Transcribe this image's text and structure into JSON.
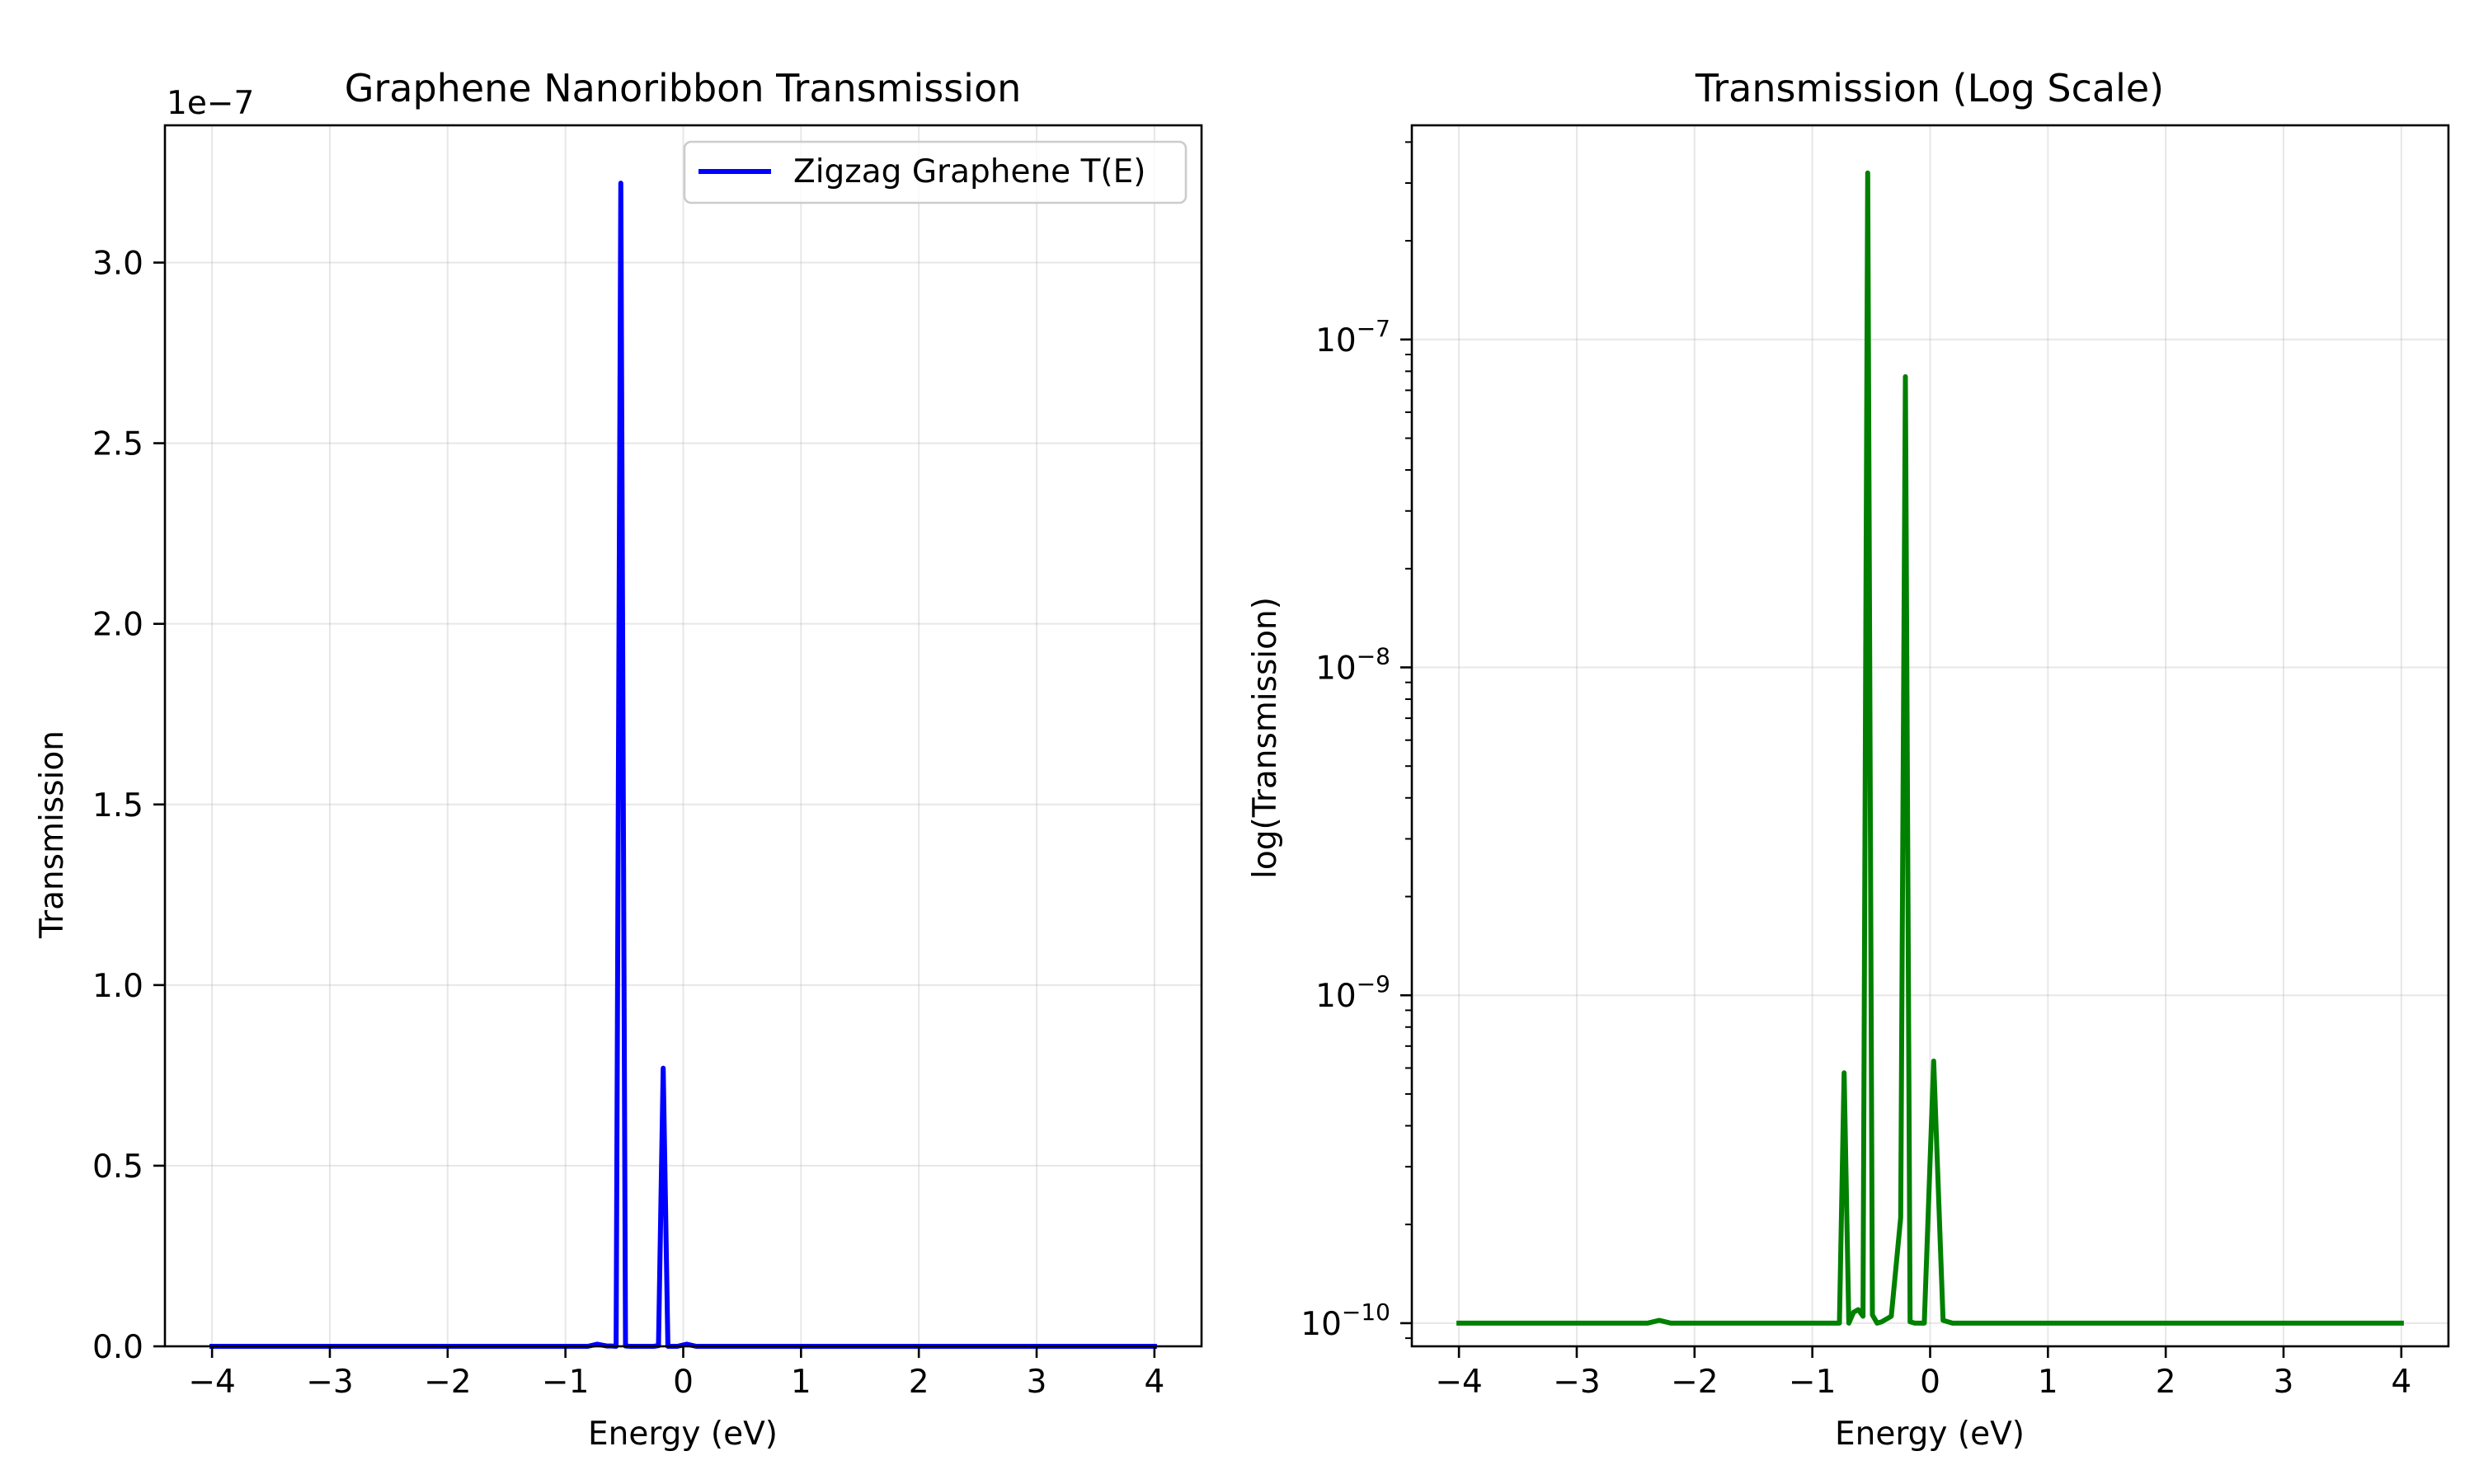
{
  "chart_data": [
    {
      "type": "line",
      "title": "Graphene Nanoribbon Transmission",
      "xlabel": "Energy (eV)",
      "ylabel": "Transmission",
      "offset_text": "1e−7",
      "xlim": [
        -4.4,
        4.4
      ],
      "ylim": [
        0,
        3.38
      ],
      "y_scale_factor": 1e-07,
      "x_ticks": [
        -4,
        -3,
        -2,
        -1,
        0,
        1,
        2,
        3,
        4
      ],
      "x_tick_labels": [
        "−4",
        "−3",
        "−2",
        "−1",
        "0",
        "1",
        "2",
        "3",
        "4"
      ],
      "y_ticks": [
        0,
        0.5,
        1.0,
        1.5,
        2.0,
        2.5,
        3.0
      ],
      "y_tick_labels": [
        "0.0",
        "0.5",
        "1.0",
        "1.5",
        "2.0",
        "2.5",
        "3.0"
      ],
      "grid": true,
      "legend_position": "top-right",
      "series": [
        {
          "name": "Zigzag Graphene T(E)",
          "color": "#0000ff",
          "x": [
            -4.0,
            -2.3,
            -0.81,
            -0.73,
            -0.65,
            -0.61,
            -0.57,
            -0.53,
            -0.49,
            -0.45,
            -0.41,
            -0.33,
            -0.25,
            -0.21,
            -0.17,
            -0.13,
            -0.09,
            -0.05,
            0.03,
            0.11,
            0.19,
            0.27,
            1.0,
            2.0,
            3.0,
            4.0
          ],
          "y": [
            0.0,
            0.0,
            0.0,
            0.006,
            0.001,
            0.001,
            0.0,
            3.22,
            0.001,
            0.0,
            0.0,
            0.0,
            0.0,
            0.002,
            0.77,
            0.0,
            0.0,
            0.0,
            0.006,
            0.0,
            0.0,
            0.0,
            0.0,
            0.0,
            0.0,
            0.0
          ]
        }
      ]
    },
    {
      "type": "line",
      "title": "Transmission (Log Scale)",
      "xlabel": "Energy (eV)",
      "ylabel": "log(Transmission)",
      "xlim": [
        -4.4,
        4.4
      ],
      "ylim": [
        8.5e-11,
        4.5e-07
      ],
      "y_scale": "log",
      "x_ticks": [
        -4,
        -3,
        -2,
        -1,
        0,
        1,
        2,
        3,
        4
      ],
      "x_tick_labels": [
        "−4",
        "−3",
        "−2",
        "−1",
        "0",
        "1",
        "2",
        "3",
        "4"
      ],
      "y_ticks": [
        1e-10,
        1e-09,
        1e-08,
        1e-07
      ],
      "y_tick_labels": [
        {
          "base": "10",
          "exp": "−10"
        },
        {
          "base": "10",
          "exp": "−9"
        },
        {
          "base": "10",
          "exp": "−8"
        },
        {
          "base": "10",
          "exp": "−7"
        }
      ],
      "grid": true,
      "series": [
        {
          "color": "#008000",
          "x": [
            -4.0,
            -2.4,
            -2.3,
            -2.2,
            -0.85,
            -0.77,
            -0.73,
            -0.69,
            -0.65,
            -0.61,
            -0.57,
            -0.53,
            -0.49,
            -0.45,
            -0.41,
            -0.33,
            -0.25,
            -0.21,
            -0.17,
            -0.13,
            -0.09,
            -0.05,
            0.03,
            0.11,
            0.19,
            0.27,
            1.0,
            2.0,
            3.0,
            4.0
          ],
          "y": [
            1e-10,
            1e-10,
            1.02e-10,
            1e-10,
            1e-10,
            1e-10,
            5.8e-10,
            1e-10,
            1.08e-10,
            1.1e-10,
            1.05e-10,
            3.22e-07,
            1.06e-10,
            1e-10,
            1.01e-10,
            1.05e-10,
            2.1e-10,
            7.7e-08,
            1.01e-10,
            1e-10,
            1e-10,
            1e-10,
            6.3e-10,
            1.02e-10,
            1e-10,
            1e-10,
            1e-10,
            1e-10,
            1e-10,
            1e-10
          ]
        }
      ]
    }
  ]
}
